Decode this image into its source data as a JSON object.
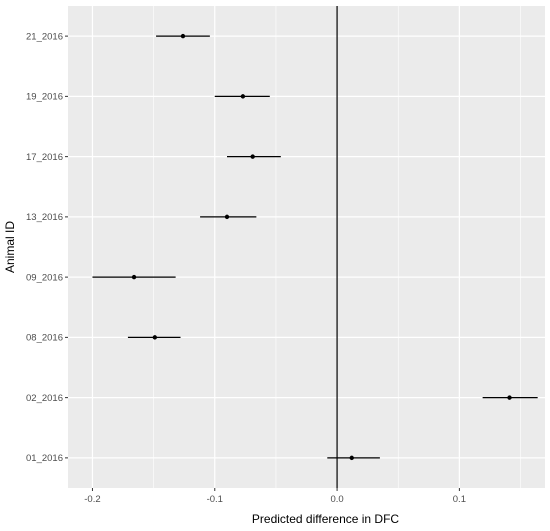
{
  "chart_data": {
    "type": "scatter",
    "subtype": "forest-plot",
    "xlabel": "Predicted difference in DFC",
    "ylabel": "Animal ID",
    "xlim": [
      -0.22,
      0.17
    ],
    "x_ticks": [
      -0.2,
      -0.1,
      0.0,
      0.1
    ],
    "x_tick_labels": [
      "-0.2",
      "-0.1",
      "0.0",
      "0.1"
    ],
    "reference_line_x": 0,
    "grid": true,
    "legend": "none",
    "colors": {
      "panel_background": "#ebebeb",
      "grid": "#ffffff",
      "points": "#000000",
      "reference_line": "#000000"
    },
    "categories": [
      "01_2016",
      "02_2016",
      "08_2016",
      "09_2016",
      "13_2016",
      "17_2016",
      "19_2016",
      "21_2016"
    ],
    "estimates": [
      0.012,
      0.141,
      -0.149,
      -0.166,
      -0.09,
      -0.069,
      -0.077,
      -0.126
    ],
    "lower": [
      -0.008,
      0.119,
      -0.171,
      -0.2,
      -0.112,
      -0.09,
      -0.1,
      -0.148
    ],
    "upper": [
      0.035,
      0.164,
      -0.128,
      -0.132,
      -0.066,
      -0.046,
      -0.055,
      -0.104
    ]
  }
}
